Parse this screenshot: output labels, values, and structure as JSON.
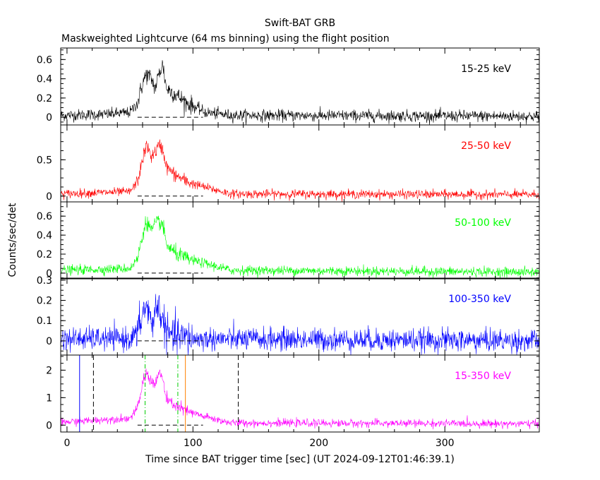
{
  "chart_data": {
    "type": "line",
    "title": "Swift-BAT GRB",
    "subtitle": "Maskweighted Lightcurve (64 ms binning) using the flight position",
    "xlabel": "Time since BAT trigger time [sec] (UT 2024-09-12T01:46:39.1)",
    "ylabel": "Counts/sec/det",
    "xlim": [
      -5,
      375
    ],
    "x_ticks": [
      0,
      100,
      200,
      300
    ],
    "panels": [
      {
        "name": "15-25 keV",
        "color": "#000000",
        "ylim": [
          -0.08,
          0.72
        ],
        "y_ticks": [
          0,
          0.2,
          0.4,
          0.6
        ],
        "y_tick_labels": [
          "0",
          "0.2",
          "0.4",
          "0.6"
        ],
        "noise": 0.03,
        "base": 0.02,
        "profile": [
          [
            -5,
            0.02
          ],
          [
            30,
            0.03
          ],
          [
            50,
            0.05
          ],
          [
            56,
            0.15
          ],
          [
            60,
            0.35
          ],
          [
            63,
            0.45
          ],
          [
            67,
            0.4
          ],
          [
            70,
            0.3
          ],
          [
            73,
            0.45
          ],
          [
            76,
            0.55
          ],
          [
            79,
            0.3
          ],
          [
            85,
            0.25
          ],
          [
            95,
            0.15
          ],
          [
            110,
            0.05
          ],
          [
            130,
            0.02
          ],
          [
            375,
            0.01
          ]
        ]
      },
      {
        "name": "25-50 keV",
        "color": "#ff0000",
        "ylim": [
          -0.08,
          0.98
        ],
        "y_ticks": [
          0,
          0.5
        ],
        "y_tick_labels": [
          "0",
          "0.5"
        ],
        "noise": 0.03,
        "base": 0.02,
        "profile": [
          [
            -5,
            0.03
          ],
          [
            30,
            0.05
          ],
          [
            50,
            0.06
          ],
          [
            56,
            0.2
          ],
          [
            60,
            0.5
          ],
          [
            63,
            0.7
          ],
          [
            67,
            0.55
          ],
          [
            70,
            0.6
          ],
          [
            73,
            0.7
          ],
          [
            76,
            0.65
          ],
          [
            79,
            0.4
          ],
          [
            85,
            0.3
          ],
          [
            95,
            0.2
          ],
          [
            110,
            0.12
          ],
          [
            130,
            0.03
          ],
          [
            375,
            0.02
          ]
        ]
      },
      {
        "name": "50-100 keV",
        "color": "#00ff00",
        "ylim": [
          -0.06,
          0.75
        ],
        "y_ticks": [
          0,
          0.2,
          0.4,
          0.6
        ],
        "y_tick_labels": [
          "0",
          "0.2",
          "0.4",
          "0.6"
        ],
        "noise": 0.025,
        "base": 0.02,
        "profile": [
          [
            -5,
            0.03
          ],
          [
            30,
            0.04
          ],
          [
            50,
            0.05
          ],
          [
            56,
            0.15
          ],
          [
            60,
            0.4
          ],
          [
            63,
            0.55
          ],
          [
            67,
            0.45
          ],
          [
            70,
            0.5
          ],
          [
            73,
            0.55
          ],
          [
            76,
            0.5
          ],
          [
            79,
            0.3
          ],
          [
            85,
            0.22
          ],
          [
            95,
            0.15
          ],
          [
            110,
            0.1
          ],
          [
            130,
            0.03
          ],
          [
            375,
            0.01
          ]
        ]
      },
      {
        "name": "100-350 keV",
        "color": "#0000ff",
        "ylim": [
          -0.07,
          0.31
        ],
        "y_ticks": [
          0,
          0.1,
          0.2,
          0.3
        ],
        "y_tick_labels": [
          "0",
          "0.1",
          "0.2",
          "0.3"
        ],
        "noise": 0.028,
        "base": 0.0,
        "profile": [
          [
            -5,
            0.01
          ],
          [
            50,
            0.01
          ],
          [
            56,
            0.04
          ],
          [
            60,
            0.13
          ],
          [
            63,
            0.18
          ],
          [
            67,
            0.08
          ],
          [
            70,
            0.15
          ],
          [
            73,
            0.17
          ],
          [
            76,
            0.1
          ],
          [
            80,
            0.03
          ],
          [
            100,
            0.01
          ],
          [
            375,
            0.0
          ]
        ]
      },
      {
        "name": "15-350 keV",
        "color": "#ff00ff",
        "ylim": [
          -0.25,
          2.55
        ],
        "y_ticks": [
          0,
          1,
          2
        ],
        "y_tick_labels": [
          "0",
          "1",
          "2"
        ],
        "noise": 0.07,
        "base": 0.05,
        "profile": [
          [
            -5,
            0.1
          ],
          [
            30,
            0.2
          ],
          [
            50,
            0.25
          ],
          [
            56,
            0.6
          ],
          [
            60,
            1.5
          ],
          [
            63,
            1.9
          ],
          [
            67,
            1.6
          ],
          [
            70,
            1.5
          ],
          [
            73,
            1.9
          ],
          [
            76,
            1.7
          ],
          [
            79,
            0.9
          ],
          [
            85,
            0.75
          ],
          [
            95,
            0.5
          ],
          [
            110,
            0.3
          ],
          [
            130,
            0.08
          ],
          [
            375,
            0.05
          ]
        ]
      }
    ],
    "vlines": [
      {
        "x": 10,
        "color": "#0000ff",
        "style": "solid"
      },
      {
        "x": 21,
        "color": "#000000",
        "style": "dashed"
      },
      {
        "x": 62,
        "color": "#00cc00",
        "style": "dashdot"
      },
      {
        "x": 88,
        "color": "#00cc00",
        "style": "dashdot"
      },
      {
        "x": 94,
        "color": "#ff8000",
        "style": "solid"
      },
      {
        "x": 136,
        "color": "#000000",
        "style": "dashed"
      }
    ],
    "bg_segment_dashes": {
      "from": 56,
      "to": 108
    }
  }
}
